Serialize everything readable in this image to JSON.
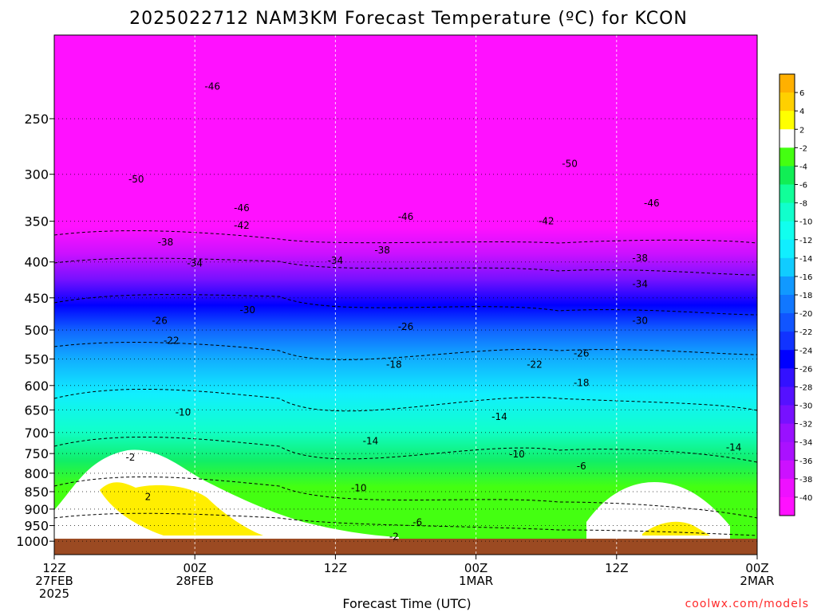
{
  "chart_data": {
    "type": "heatmap",
    "title": "2025022712 NAM3KM Forecast Temperature (ºC) for KCON",
    "xlabel": "Forecast Time (UTC)",
    "ylabel": "",
    "y_axis": {
      "scale": "log",
      "inverted": true,
      "ylim": [
        1045,
        190
      ],
      "ticks": [
        250,
        300,
        350,
        400,
        450,
        500,
        550,
        600,
        650,
        700,
        750,
        800,
        850,
        900,
        950,
        1000
      ]
    },
    "x_axis": {
      "range_hours": [
        0,
        60
      ],
      "ticks": [
        {
          "hour": 0,
          "lines": [
            "12Z",
            "27FEB",
            "2025"
          ]
        },
        {
          "hour": 12,
          "lines": [
            "00Z",
            "28FEB"
          ]
        },
        {
          "hour": 24,
          "lines": [
            "12Z"
          ]
        },
        {
          "hour": 36,
          "lines": [
            "00Z",
            "1MAR"
          ]
        },
        {
          "hour": 48,
          "lines": [
            "12Z"
          ]
        },
        {
          "hour": 60,
          "lines": [
            "00Z",
            "2MAR"
          ]
        }
      ]
    },
    "grid": true,
    "colorbar": {
      "labels": [
        "6",
        "4",
        "2",
        "-2",
        "-4",
        "-6",
        "-8",
        "-10",
        "-12",
        "-14",
        "-16",
        "-18",
        "-20",
        "-22",
        "-24",
        "-26",
        "-28",
        "-30",
        "-32",
        "-34",
        "-36",
        "-38",
        "-40"
      ],
      "colors": [
        "#ffb000",
        "#ffd000",
        "#ffff00",
        "#ffffff",
        "#44ff11",
        "#11ee55",
        "#11ff99",
        "#11ffcc",
        "#11ffee",
        "#11eeff",
        "#11ccff",
        "#1199ff",
        "#1177ff",
        "#1155ff",
        "#1133ff",
        "#0000ff",
        "#3311ff",
        "#5511ff",
        "#7711ff",
        "#9911ff",
        "#aa11ff",
        "#cc11ff",
        "#ee11ff",
        "#ff11ff"
      ]
    },
    "contour_labels": [
      {
        "value": "-46",
        "hour": 13.5,
        "p": 225
      },
      {
        "value": "-50",
        "hour": 7,
        "p": 305
      },
      {
        "value": "-46",
        "hour": 16,
        "p": 335
      },
      {
        "value": "-42",
        "hour": 16,
        "p": 355
      },
      {
        "value": "-46",
        "hour": 30,
        "p": 345
      },
      {
        "value": "-50",
        "hour": 44,
        "p": 290
      },
      {
        "value": "-42",
        "hour": 42,
        "p": 350
      },
      {
        "value": "-46",
        "hour": 51,
        "p": 330
      },
      {
        "value": "-38",
        "hour": 9.5,
        "p": 375
      },
      {
        "value": "-34",
        "hour": 12,
        "p": 402
      },
      {
        "value": "-34",
        "hour": 24,
        "p": 398
      },
      {
        "value": "-38",
        "hour": 28,
        "p": 385
      },
      {
        "value": "-38",
        "hour": 50,
        "p": 395
      },
      {
        "value": "-34",
        "hour": 50,
        "p": 430
      },
      {
        "value": "-30",
        "hour": 16.5,
        "p": 468
      },
      {
        "value": "-30",
        "hour": 50,
        "p": 485
      },
      {
        "value": "-26",
        "hour": 9,
        "p": 485
      },
      {
        "value": "-22",
        "hour": 10,
        "p": 518
      },
      {
        "value": "-26",
        "hour": 30,
        "p": 495
      },
      {
        "value": "-26",
        "hour": 45,
        "p": 540
      },
      {
        "value": "-18",
        "hour": 29,
        "p": 560
      },
      {
        "value": "-22",
        "hour": 41,
        "p": 560
      },
      {
        "value": "-18",
        "hour": 45,
        "p": 595
      },
      {
        "value": "-10",
        "hour": 11,
        "p": 655
      },
      {
        "value": "-14",
        "hour": 38,
        "p": 665
      },
      {
        "value": "-14",
        "hour": 27,
        "p": 720
      },
      {
        "value": "-14",
        "hour": 58,
        "p": 735
      },
      {
        "value": "-10",
        "hour": 39.5,
        "p": 752
      },
      {
        "value": "-6",
        "hour": 45,
        "p": 782
      },
      {
        "value": "-10",
        "hour": 26,
        "p": 840
      },
      {
        "value": "-2",
        "hour": 6.5,
        "p": 760
      },
      {
        "value": "2",
        "hour": 8,
        "p": 865
      },
      {
        "value": "-6",
        "hour": 31,
        "p": 940
      },
      {
        "value": "-2",
        "hour": 29,
        "p": 985
      }
    ],
    "ground_p": 985
  },
  "credit": "coolwx.com/models"
}
